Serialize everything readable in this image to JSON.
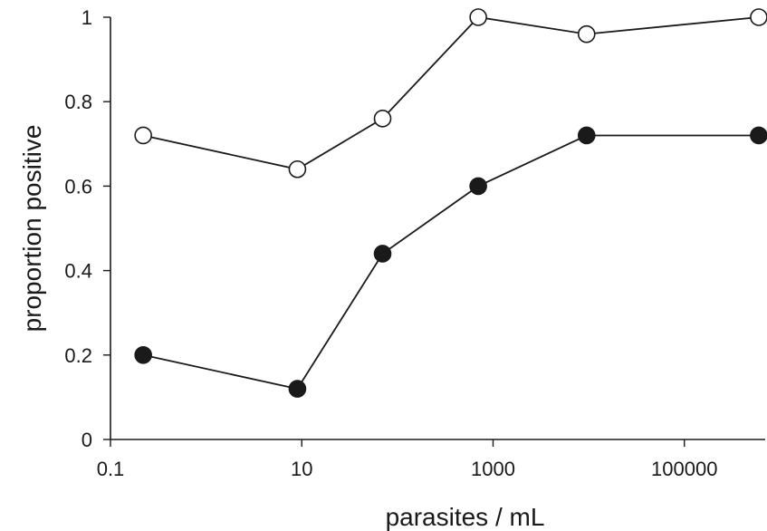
{
  "chart_data": {
    "type": "line",
    "xscale": "log",
    "xlabel": "parasites / mL",
    "ylabel": "proportion positive",
    "xlim": [
      0.1,
      700000
    ],
    "ylim": [
      0,
      1
    ],
    "x_ticks": [
      0.1,
      10,
      1000,
      100000
    ],
    "x_tick_labels": [
      "0.1",
      "10",
      "1000",
      "100000"
    ],
    "y_ticks": [
      0,
      0.2,
      0.4,
      0.6,
      0.8,
      1
    ],
    "y_tick_labels": [
      "0",
      "0.2",
      "0.4",
      "0.6",
      "0.8",
      "1"
    ],
    "grid": false,
    "series": [
      {
        "marker": "open-circle",
        "color": "#1a1a1a",
        "x": [
          0.22,
          9,
          70,
          700,
          9500,
          600000
        ],
        "y": [
          0.72,
          0.64,
          0.76,
          1.0,
          0.96,
          1.0
        ]
      },
      {
        "marker": "filled-circle",
        "color": "#1a1a1a",
        "x": [
          0.22,
          9,
          70,
          700,
          9500,
          600000
        ],
        "y": [
          0.2,
          0.12,
          0.44,
          0.6,
          0.72,
          0.72
        ]
      }
    ]
  }
}
